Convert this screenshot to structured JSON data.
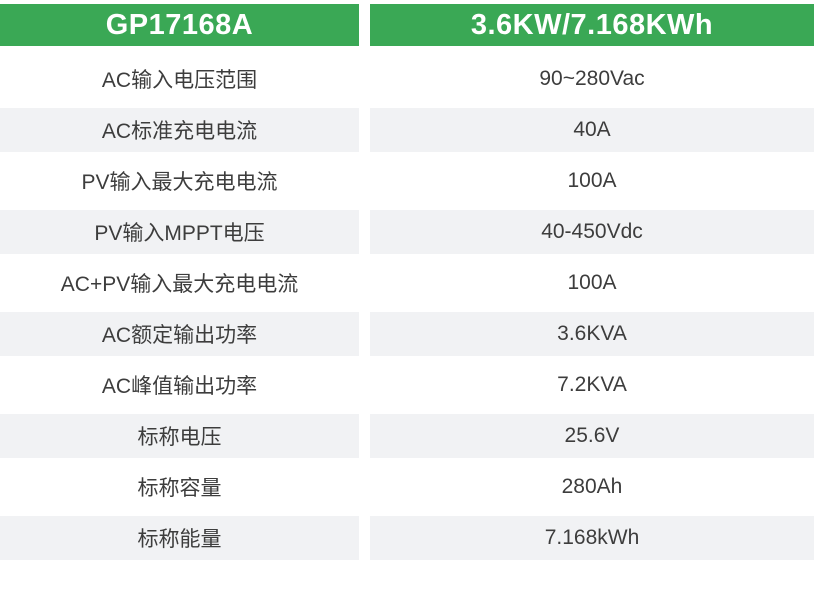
{
  "table": {
    "header": {
      "model": "GP17168A",
      "rating": "3.6KW/7.168KWh"
    },
    "rows": [
      {
        "label": "AC输入电压范围",
        "value": "90~280Vac"
      },
      {
        "label": "AC标准充电电流",
        "value": "40A"
      },
      {
        "label": "PV输入最大充电电流",
        "value": "100A"
      },
      {
        "label": "PV输入MPPT电压",
        "value": "40-450Vdc"
      },
      {
        "label": "AC+PV输入最大充电电流",
        "value": "100A"
      },
      {
        "label": "AC额定输出功率",
        "value": "3.6KVA"
      },
      {
        "label": "AC峰值输出功率",
        "value": "7.2KVA"
      },
      {
        "label": "标称电压",
        "value": "25.6V"
      },
      {
        "label": "标称容量",
        "value": "280Ah"
      },
      {
        "label": "标称能量",
        "value": "7.168kWh"
      }
    ],
    "colors": {
      "header_bg": "#3aa855",
      "header_text": "#ffffff",
      "row_alt_bg": "#f1f2f4",
      "row_text": "#3d3d3d"
    }
  }
}
